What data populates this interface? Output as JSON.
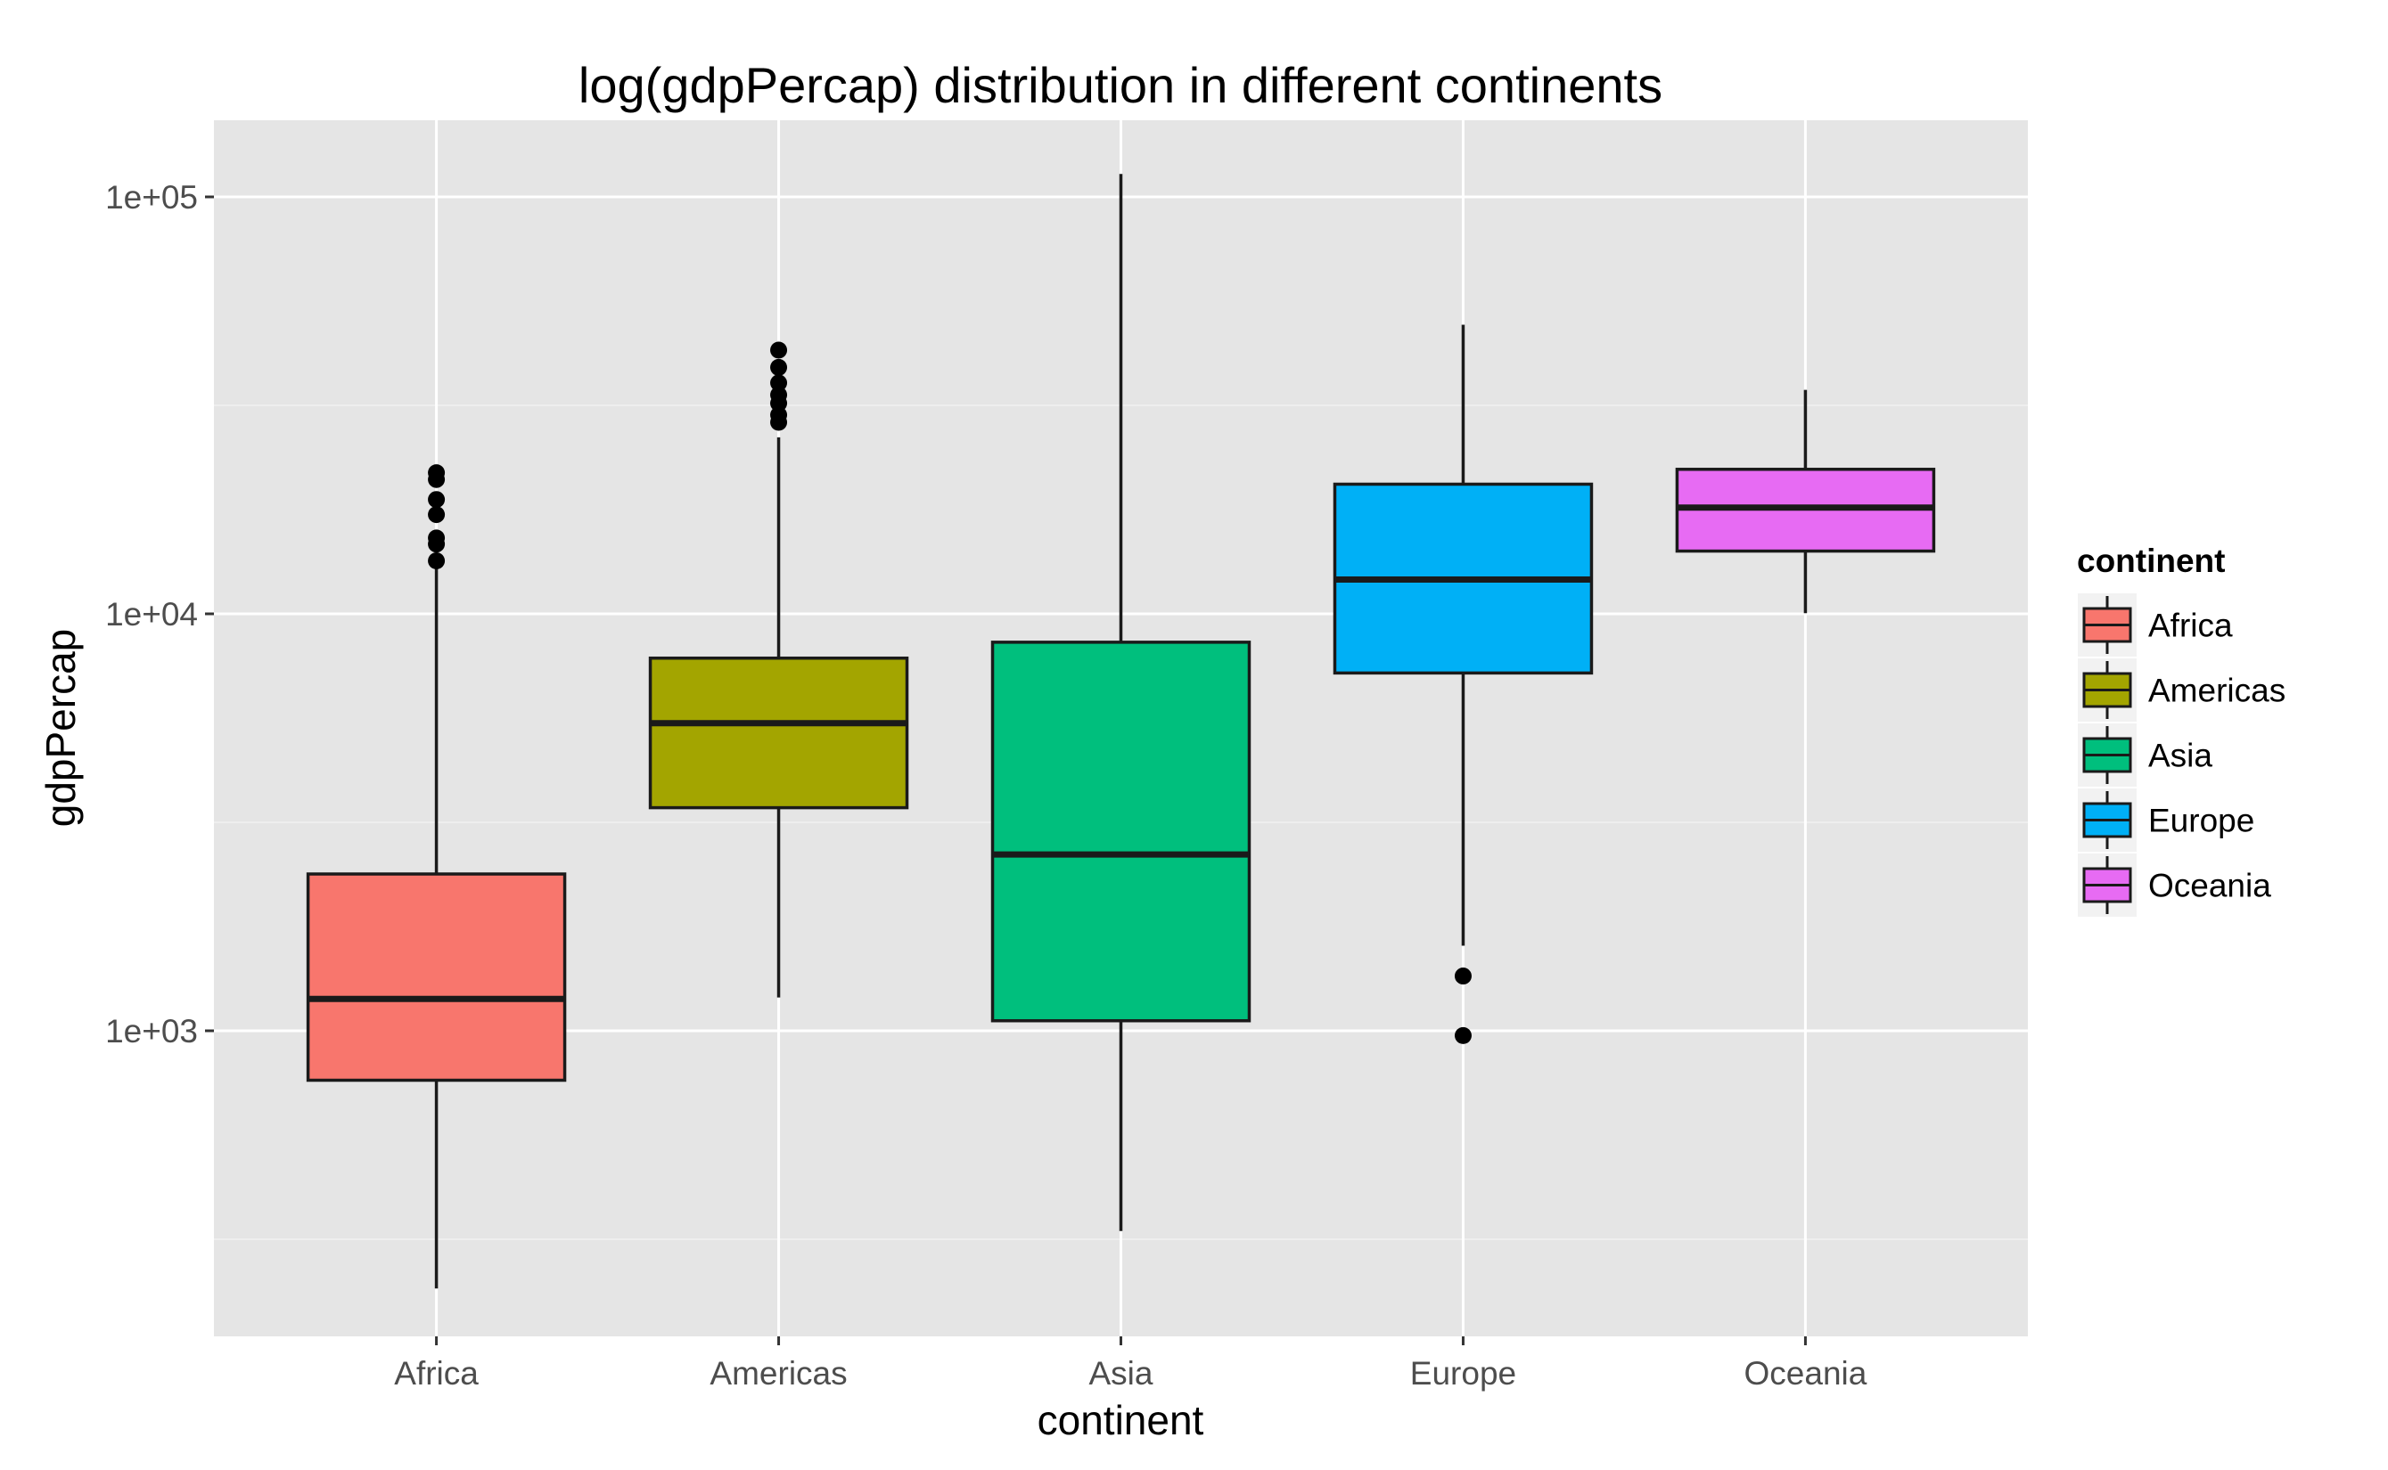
{
  "chart_data": {
    "type": "boxplot",
    "title": "log(gdpPercap) distribution in different continents",
    "xlabel": "continent",
    "ylabel": "gdpPercap",
    "y_scale": "log10",
    "ylim": [
      200,
      160000
    ],
    "y_ticks": [
      {
        "value": 1000,
        "label": "1e+03"
      },
      {
        "value": 10000,
        "label": "1e+04"
      },
      {
        "value": 100000,
        "label": "1e+05"
      }
    ],
    "y_minor_ticks": [
      316.2,
      3162.3,
      31622.8
    ],
    "grid": true,
    "panel_background": "#e5e5e5",
    "categories": [
      "Africa",
      "Americas",
      "Asia",
      "Europe",
      "Oceania"
    ],
    "boxes": [
      {
        "category": "Africa",
        "color": "#f8766d",
        "whisker_low": 241,
        "q1": 761,
        "median": 1192,
        "q3": 2377,
        "whisker_high": 13206,
        "outliers": [
          13400,
          14700,
          15200,
          17300,
          18800,
          21000,
          21800
        ]
      },
      {
        "category": "Americas",
        "color": "#a3a500",
        "whisker_low": 1202,
        "q1": 3428,
        "median": 5466,
        "q3": 7830,
        "whisker_high": 26500,
        "outliers": [
          28800,
          30000,
          32000,
          33500,
          35800,
          39000,
          42900
        ]
      },
      {
        "category": "Asia",
        "color": "#00bf7d",
        "whisker_low": 331,
        "q1": 1057,
        "median": 2647,
        "q3": 8549,
        "whisker_high": 113523,
        "outliers": []
      },
      {
        "category": "Europe",
        "color": "#00b0f6",
        "whisker_low": 1600,
        "q1": 7213,
        "median": 12082,
        "q3": 20461,
        "whisker_high": 49357,
        "outliers": [
          1353,
          974
        ]
      },
      {
        "category": "Oceania",
        "color": "#e76bf3",
        "whisker_low": 10040,
        "q1": 14142,
        "median": 17983,
        "q3": 22214,
        "whisker_high": 34435,
        "outliers": []
      }
    ],
    "legend": {
      "title": "continent",
      "position": "right",
      "items": [
        {
          "label": "Africa",
          "color": "#f8766d"
        },
        {
          "label": "Americas",
          "color": "#a3a500"
        },
        {
          "label": "Asia",
          "color": "#00bf7d"
        },
        {
          "label": "Europe",
          "color": "#00b0f6"
        },
        {
          "label": "Oceania",
          "color": "#e76bf3"
        }
      ]
    }
  }
}
